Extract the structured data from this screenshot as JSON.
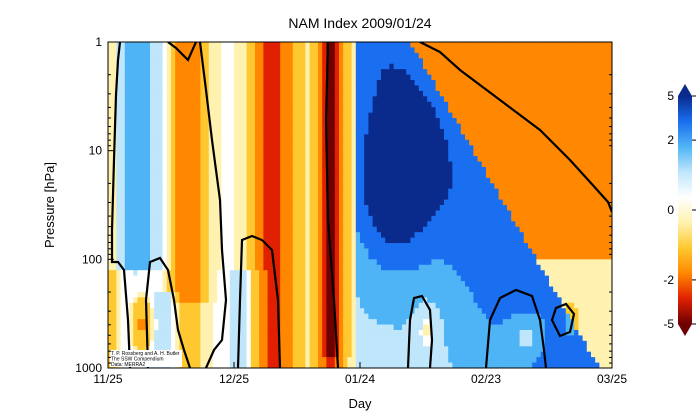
{
  "chart_data": {
    "type": "heatmap",
    "title": "NAM Index 2009/01/24",
    "xlabel": "Day",
    "ylabel": "Pressure [hPa]",
    "x_ticks": [
      "11/25",
      "12/25",
      "01/24",
      "02/23",
      "03/25"
    ],
    "x_tick_days": [
      0,
      30,
      60,
      90,
      120
    ],
    "xlim": [
      0,
      120
    ],
    "y_ticks": [
      "1",
      "10",
      "100",
      "1000"
    ],
    "y_tick_values": [
      1,
      10,
      100,
      1000
    ],
    "ylim": [
      1000,
      1
    ],
    "y_scale": "log",
    "colorbar_ticks": [
      "5",
      "2",
      "0",
      "-2",
      "-5"
    ],
    "colorbar_values": [
      5,
      2,
      0,
      -2,
      -5
    ],
    "colormap_colors": [
      "#0a2a8c",
      "#1a6ef0",
      "#4fb4f5",
      "#bfe6fb",
      "#ffffff",
      "#fff2b0",
      "#ffc830",
      "#ff8800",
      "#e02000",
      "#6e0000"
    ],
    "credit_lines": [
      "T. P. Rossberg and A. H. Butler",
      "The SSW Compendium",
      "Data: MERRA2"
    ],
    "grid": false,
    "legend": "colorbar-right"
  }
}
